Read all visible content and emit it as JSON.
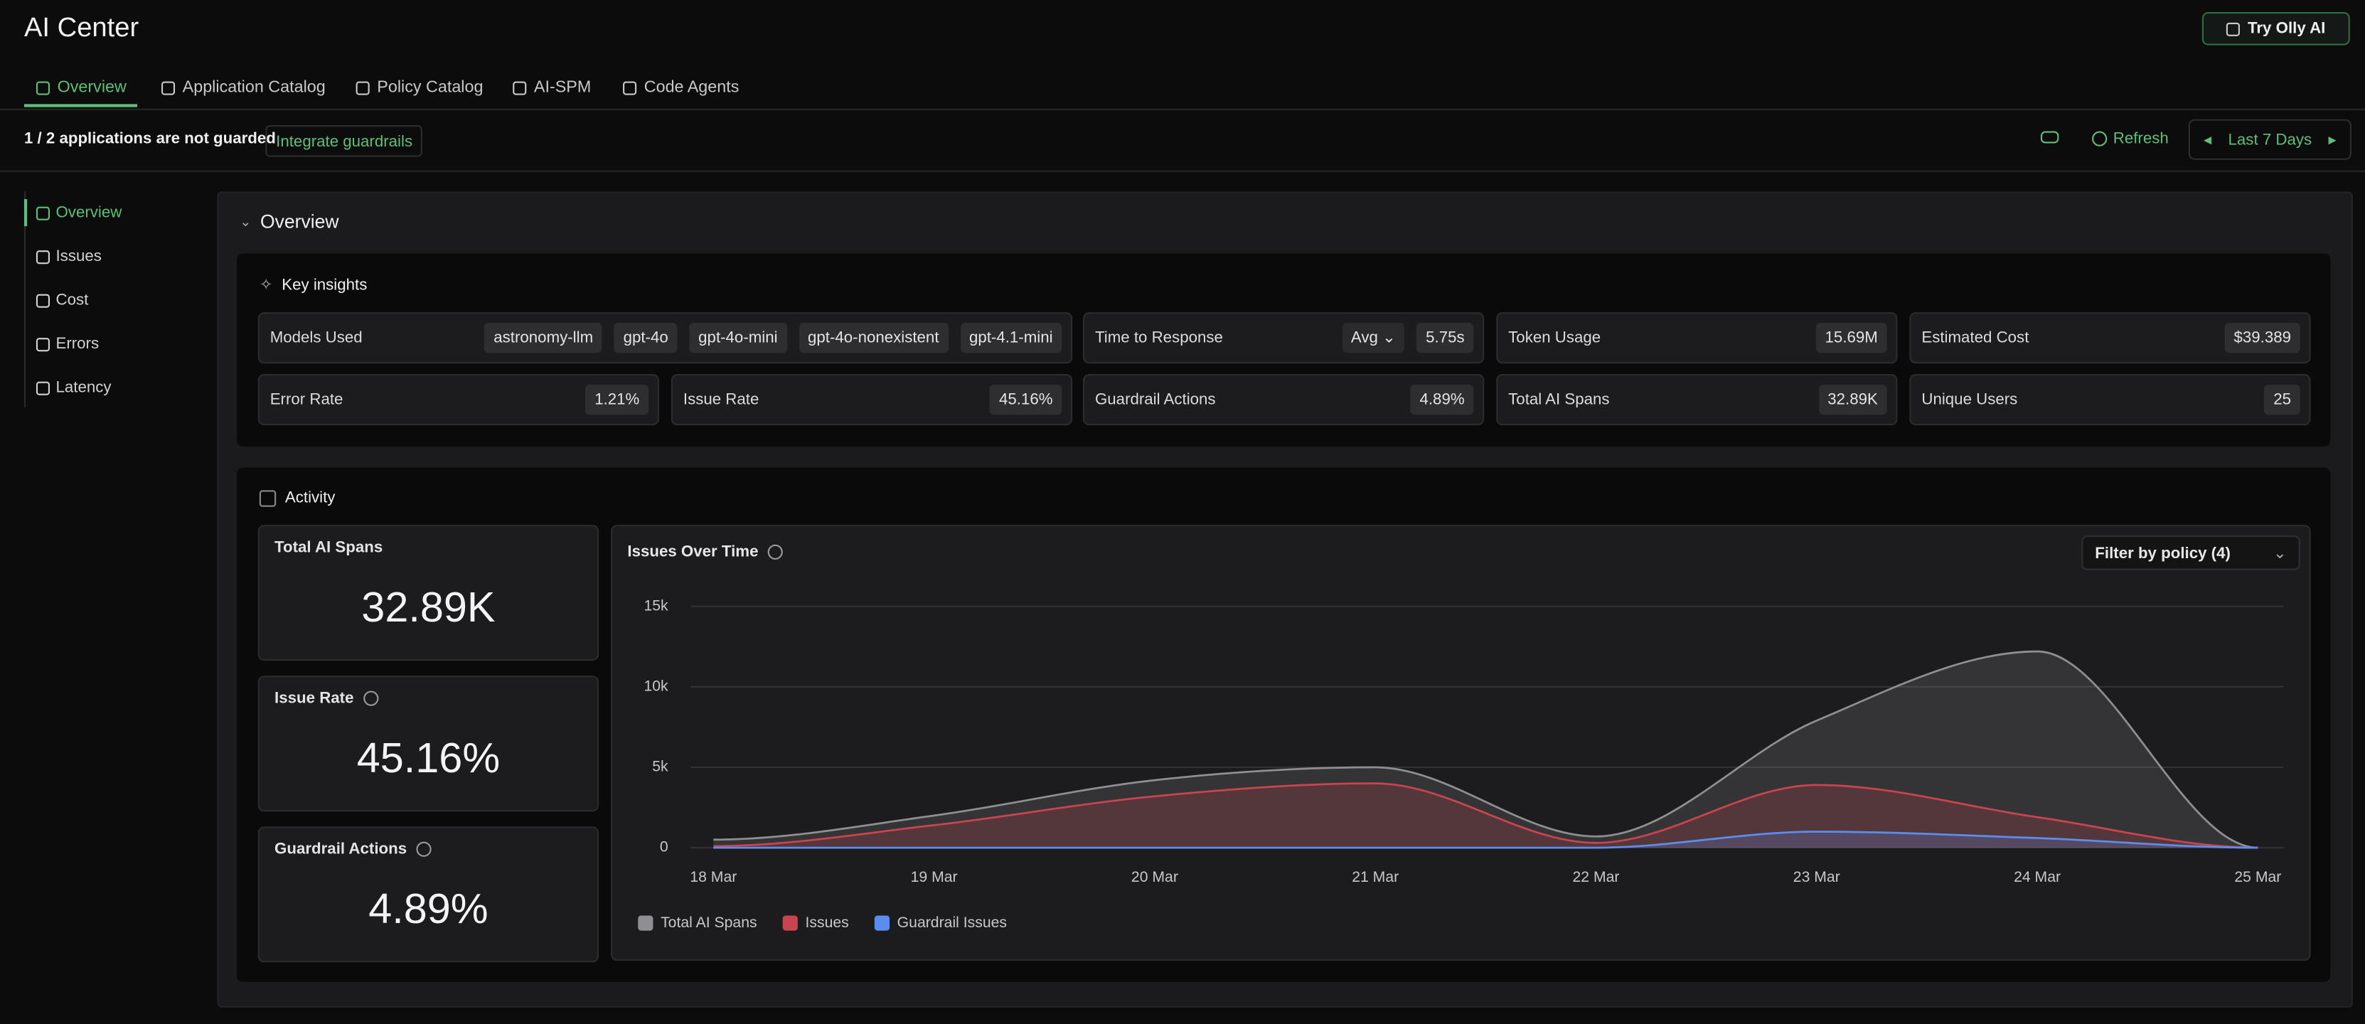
{
  "header": {
    "title": "AI Center",
    "try_button": "Try Olly AI"
  },
  "tabs": [
    "Overview",
    "Application Catalog",
    "Policy Catalog",
    "AI-SPM",
    "Code Agents"
  ],
  "banner": {
    "message": "1 / 2 applications are not guarded",
    "action": "Integrate guardrails",
    "refresh": "Refresh",
    "time_range": "Last 7 Days"
  },
  "sidebar": [
    "Overview",
    "Issues",
    "Cost",
    "Errors",
    "Latency"
  ],
  "overview": {
    "title": "Overview",
    "key_insights": {
      "title": "Key insights",
      "models_label": "Models Used",
      "models": [
        "astronomy-llm",
        "gpt-4o",
        "gpt-4o-mini",
        "gpt-4o-nonexistent",
        "gpt-4.1-mini"
      ],
      "response": {
        "label": "Time to Response",
        "agg": "Avg",
        "value": "5.75s"
      },
      "metrics": [
        {
          "label": "Token Usage",
          "value": "15.69M"
        },
        {
          "label": "Estimated Cost",
          "value": "$39.389"
        },
        {
          "label": "Error Rate",
          "value": "1.21%"
        },
        {
          "label": "Issue Rate",
          "value": "45.16%"
        },
        {
          "label": "Guardrail Actions",
          "value": "4.89%"
        },
        {
          "label": "Total AI Spans",
          "value": "32.89K"
        },
        {
          "label": "Unique Users",
          "value": "25"
        }
      ]
    },
    "activity": {
      "title": "Activity",
      "cards": [
        {
          "label": "Total AI Spans",
          "value": "32.89K"
        },
        {
          "label": "Issue Rate",
          "value": "45.16%"
        },
        {
          "label": "Guardrail Actions",
          "value": "4.89%"
        }
      ],
      "filter": "Filter by policy (4)"
    }
  },
  "chart_data": {
    "type": "area",
    "title": "Issues Over Time",
    "categories": [
      "18 Mar",
      "19 Mar",
      "20 Mar",
      "21 Mar",
      "22 Mar",
      "23 Mar",
      "24 Mar",
      "25 Mar"
    ],
    "series": [
      {
        "name": "Total AI Spans",
        "color": "#8e8e93",
        "values": [
          500,
          2000,
          4200,
          5000,
          700,
          7900,
          12200,
          0
        ]
      },
      {
        "name": "Issues",
        "color": "#c9444f",
        "values": [
          100,
          1400,
          3200,
          4000,
          300,
          3900,
          1900,
          0
        ]
      },
      {
        "name": "Guardrail Issues",
        "color": "#5b8def",
        "values": [
          0,
          0,
          0,
          0,
          0,
          1000,
          600,
          0
        ]
      }
    ],
    "ylim": [
      0,
      15000
    ],
    "yticks": [
      0,
      {
        "value": 5000,
        "label": "5k"
      },
      {
        "value": 10000,
        "label": "10k"
      },
      {
        "value": 15000,
        "label": "15k"
      }
    ],
    "grid": true
  }
}
